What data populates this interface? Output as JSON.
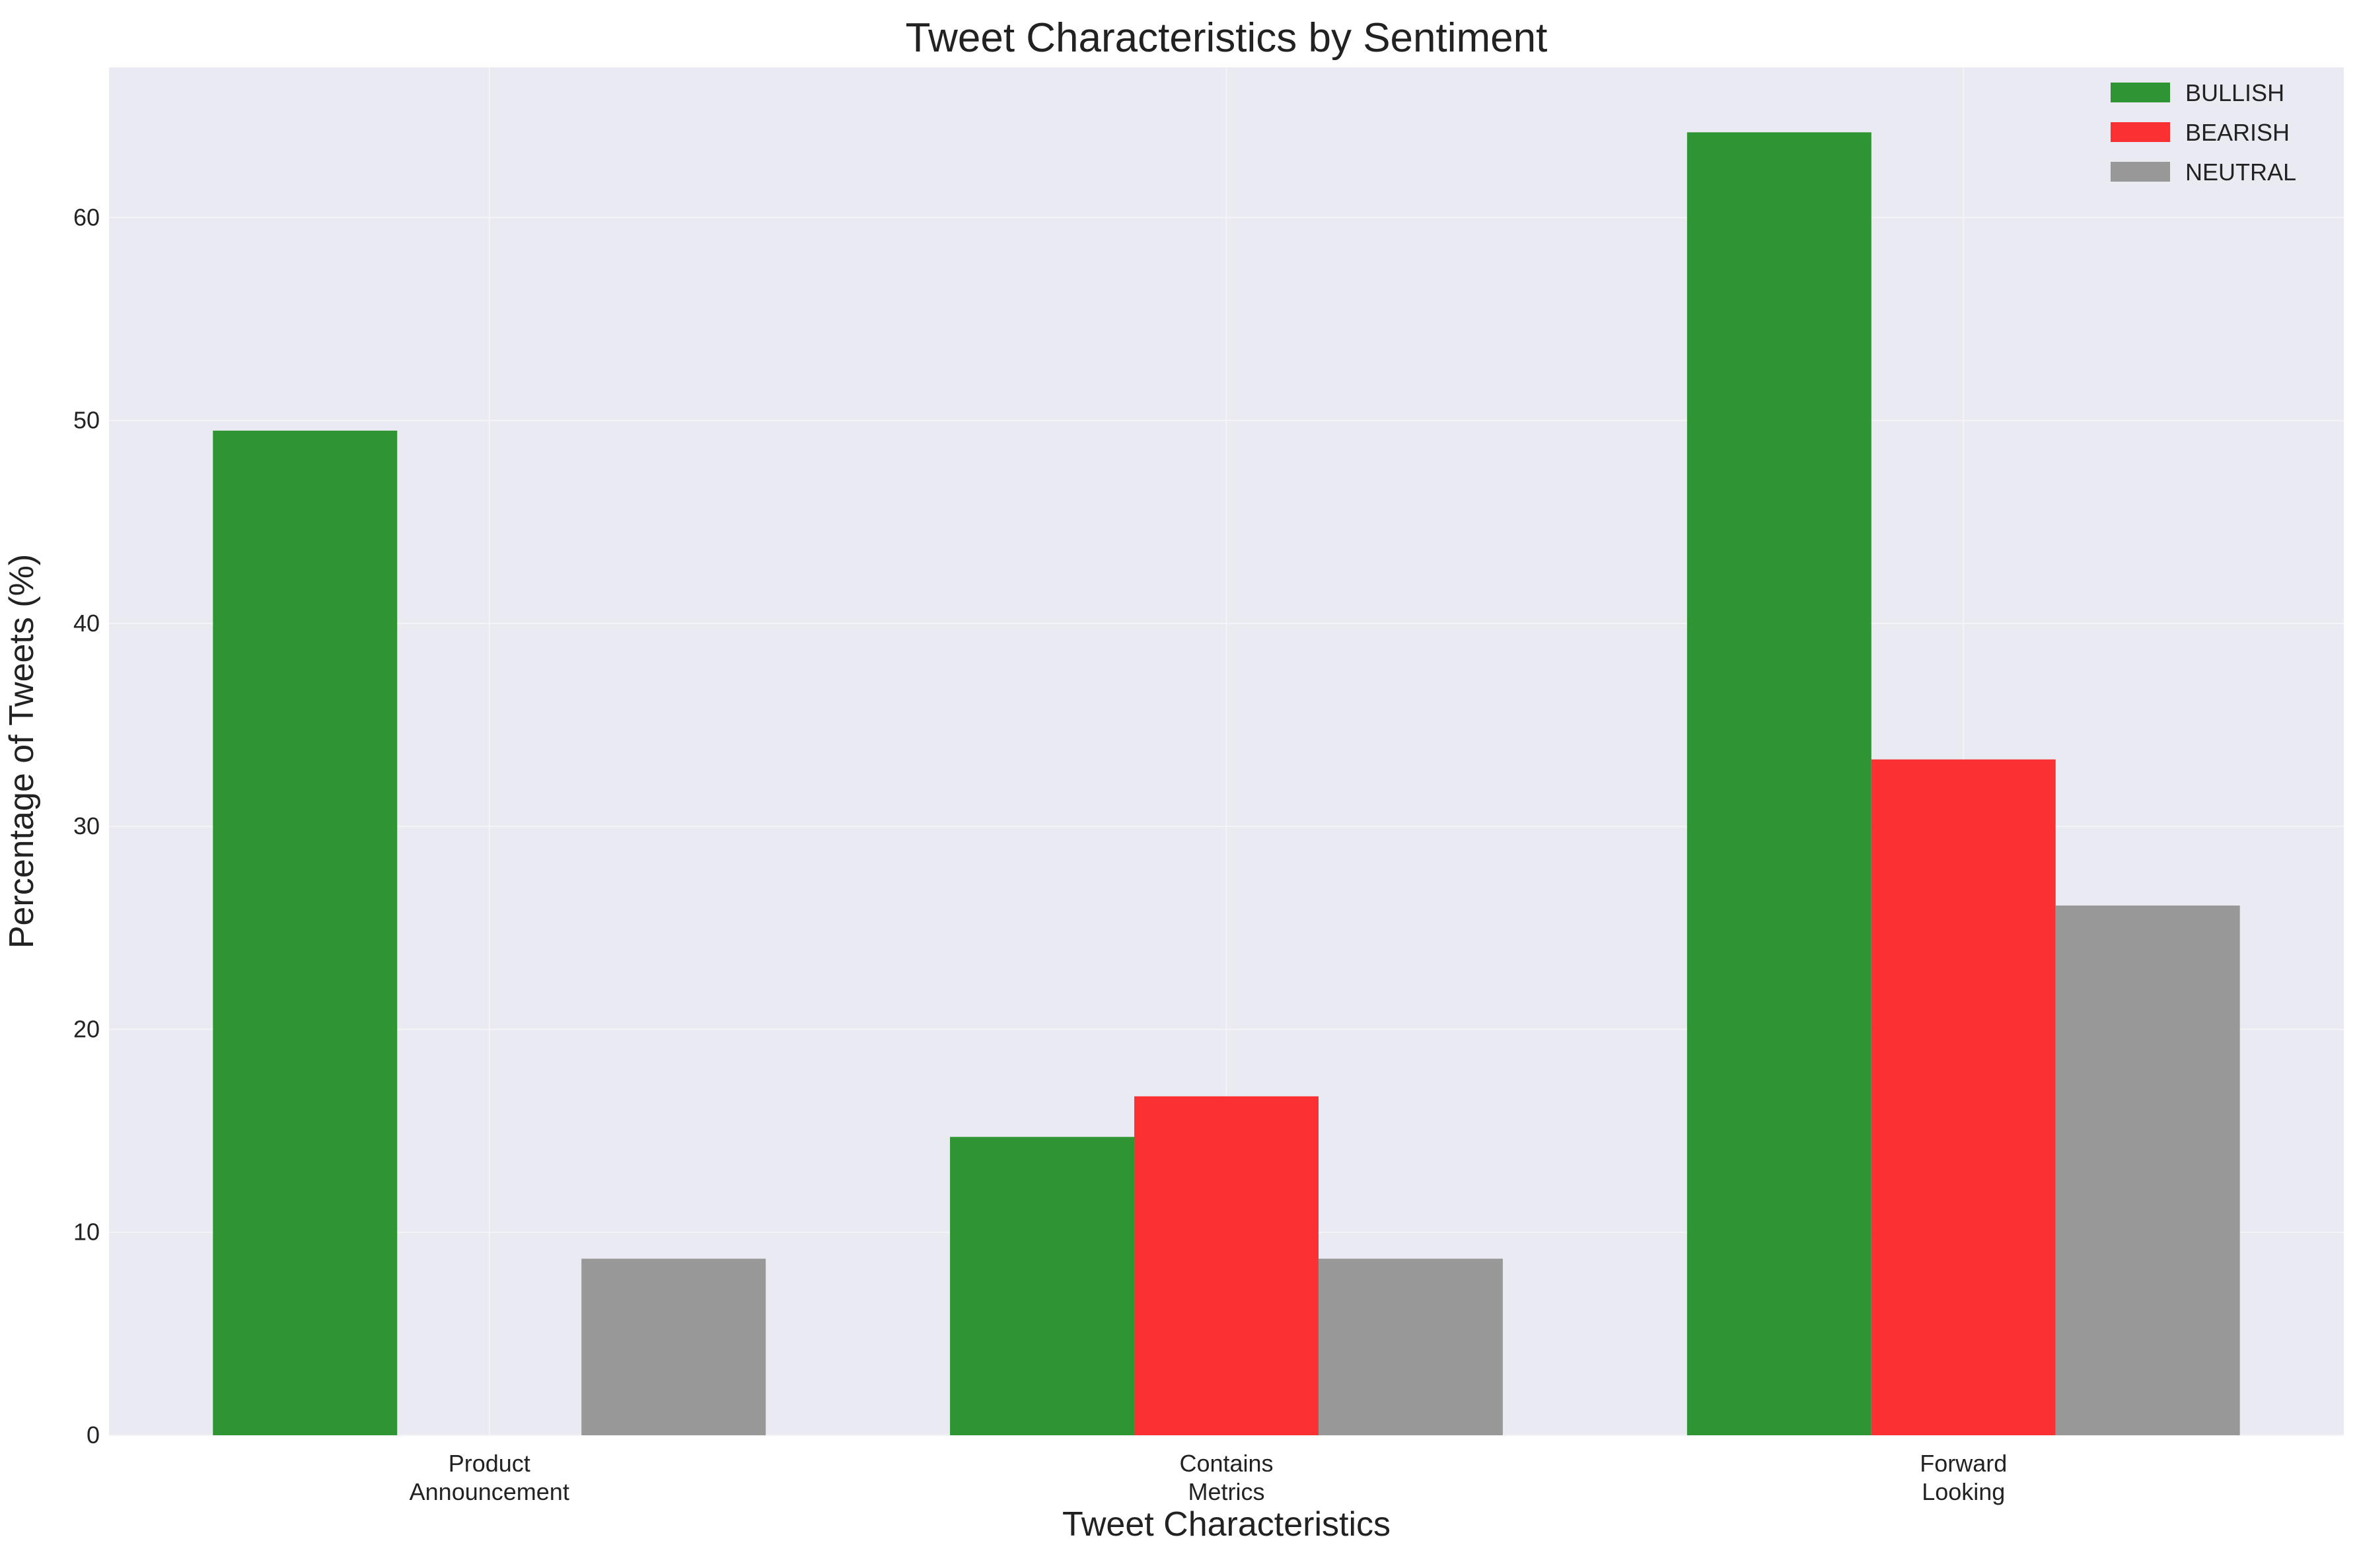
{
  "chart_data": {
    "type": "bar",
    "title": "Tweet Characteristics by Sentiment",
    "xlabel": "Tweet Characteristics",
    "ylabel": "Percentage of Tweets (%)",
    "categories": [
      [
        "Product",
        "Announcement"
      ],
      [
        "Contains",
        "Metrics"
      ],
      [
        "Forward",
        "Looking"
      ]
    ],
    "series": [
      {
        "name": "BULLISH",
        "color": "#2f9432",
        "values": [
          49.5,
          14.7,
          64.2
        ]
      },
      {
        "name": "BEARISH",
        "color": "#fb3033",
        "values": [
          0,
          16.7,
          33.3
        ]
      },
      {
        "name": "NEUTRAL",
        "color": "#989898",
        "values": [
          8.7,
          8.7,
          26.1
        ]
      }
    ],
    "ylim": [
      0,
      67.4
    ],
    "yticks": [
      "0",
      "10",
      "20",
      "30",
      "40",
      "50",
      "60"
    ],
    "grid": true,
    "legend_position": "top-right",
    "plot_background": "#eaeaf2"
  }
}
